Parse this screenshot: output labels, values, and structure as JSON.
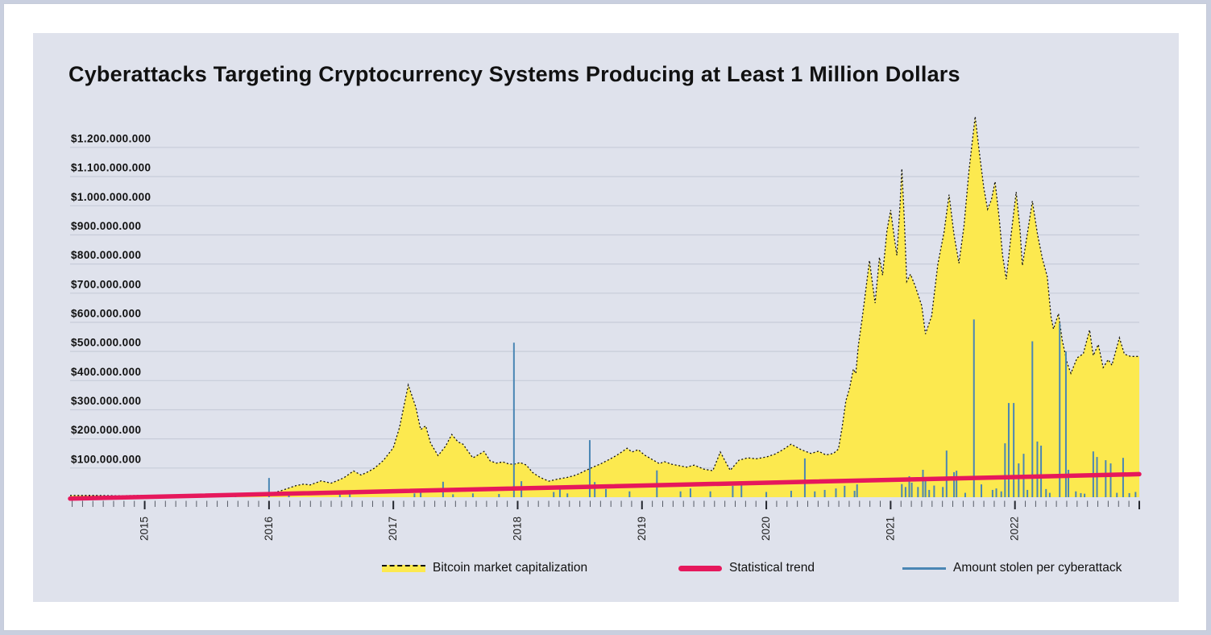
{
  "title": "Cyberattacks Targeting Cryptocurrency Systems Producing at Least 1 Million Dollars",
  "legend": {
    "market_cap_label": "Bitcoin market capitalization",
    "trend_label": "Statistical trend",
    "stolen_label": "Amount stolen per cyberattack"
  },
  "colors": {
    "page_bg": "#c9cfdf",
    "card_bg": "#ffffff",
    "panel_bg": "#dfe2ec",
    "grid": "#c7ccd9",
    "area_fill": "#FCE94F",
    "area_outline": "#111111",
    "trend": "#E6185C",
    "bars": "#4A86B4",
    "text": "#111111"
  },
  "chart_data": {
    "type": "area",
    "title": "Cyberattacks Targeting Cryptocurrency Systems Producing at Least 1 Million Dollars",
    "x_domain": [
      2014.4,
      2023.0
    ],
    "x_tick_years": [
      2015,
      2016,
      2017,
      2018,
      2019,
      2020,
      2021,
      2022
    ],
    "grid": true,
    "y_unit": "USD",
    "y_ticks": [
      {
        "value": 1200,
        "label": "$1.200.000.000"
      },
      {
        "value": 1100,
        "label": "$1.100.000.000"
      },
      {
        "value": 1000,
        "label": "$1.000.000.000"
      },
      {
        "value": 900,
        "label": "$900.000.000"
      },
      {
        "value": 800,
        "label": "$800.000.000"
      },
      {
        "value": 700,
        "label": "$700.000.000"
      },
      {
        "value": 600,
        "label": "$600.000.000"
      },
      {
        "value": 500,
        "label": "$500.000.000"
      },
      {
        "value": 400,
        "label": "$400.000.000"
      },
      {
        "value": 300,
        "label": "$300.000.000"
      },
      {
        "value": 200,
        "label": "$200.000.000"
      },
      {
        "value": 100,
        "label": "$100.000.000"
      }
    ],
    "series": [
      {
        "name": "Bitcoin market capitalization",
        "type": "area",
        "unit": "million USD",
        "points": [
          [
            2014.4,
            6
          ],
          [
            2014.6,
            6
          ],
          [
            2014.8,
            5
          ],
          [
            2015.0,
            6
          ],
          [
            2015.2,
            5
          ],
          [
            2015.45,
            5
          ],
          [
            2015.7,
            6
          ],
          [
            2015.9,
            8
          ],
          [
            2016.0,
            12
          ],
          [
            2016.08,
            20
          ],
          [
            2016.15,
            30
          ],
          [
            2016.22,
            40
          ],
          [
            2016.28,
            45
          ],
          [
            2016.33,
            42
          ],
          [
            2016.42,
            56
          ],
          [
            2016.5,
            48
          ],
          [
            2016.6,
            66
          ],
          [
            2016.68,
            90
          ],
          [
            2016.74,
            76
          ],
          [
            2016.8,
            88
          ],
          [
            2016.85,
            100
          ],
          [
            2016.92,
            126
          ],
          [
            2017.0,
            170
          ],
          [
            2017.05,
            240
          ],
          [
            2017.12,
            385
          ],
          [
            2017.18,
            310
          ],
          [
            2017.22,
            232
          ],
          [
            2017.26,
            245
          ],
          [
            2017.3,
            185
          ],
          [
            2017.36,
            143
          ],
          [
            2017.42,
            175
          ],
          [
            2017.47,
            215
          ],
          [
            2017.52,
            190
          ],
          [
            2017.56,
            182
          ],
          [
            2017.6,
            158
          ],
          [
            2017.64,
            135
          ],
          [
            2017.69,
            147
          ],
          [
            2017.73,
            157
          ],
          [
            2017.78,
            124
          ],
          [
            2017.83,
            117
          ],
          [
            2017.88,
            121
          ],
          [
            2017.93,
            114
          ],
          [
            2017.97,
            113
          ],
          [
            2018.02,
            119
          ],
          [
            2018.07,
            110
          ],
          [
            2018.12,
            85
          ],
          [
            2018.18,
            68
          ],
          [
            2018.25,
            55
          ],
          [
            2018.32,
            62
          ],
          [
            2018.4,
            68
          ],
          [
            2018.47,
            76
          ],
          [
            2018.54,
            90
          ],
          [
            2018.6,
            102
          ],
          [
            2018.67,
            115
          ],
          [
            2018.73,
            128
          ],
          [
            2018.79,
            142
          ],
          [
            2018.84,
            156
          ],
          [
            2018.88,
            168
          ],
          [
            2018.92,
            155
          ],
          [
            2018.97,
            163
          ],
          [
            2019.02,
            145
          ],
          [
            2019.08,
            130
          ],
          [
            2019.14,
            115
          ],
          [
            2019.18,
            122
          ],
          [
            2019.24,
            113
          ],
          [
            2019.3,
            108
          ],
          [
            2019.36,
            103
          ],
          [
            2019.42,
            110
          ],
          [
            2019.5,
            96
          ],
          [
            2019.57,
            91
          ],
          [
            2019.63,
            155
          ],
          [
            2019.71,
            92
          ],
          [
            2019.78,
            127
          ],
          [
            2019.85,
            135
          ],
          [
            2019.92,
            132
          ],
          [
            2020.0,
            138
          ],
          [
            2020.07,
            148
          ],
          [
            2020.13,
            162
          ],
          [
            2020.2,
            182
          ],
          [
            2020.28,
            163
          ],
          [
            2020.36,
            150
          ],
          [
            2020.42,
            158
          ],
          [
            2020.48,
            145
          ],
          [
            2020.54,
            150
          ],
          [
            2020.58,
            165
          ],
          [
            2020.61,
            240
          ],
          [
            2020.64,
            330
          ],
          [
            2020.67,
            375
          ],
          [
            2020.7,
            440
          ],
          [
            2020.72,
            425
          ],
          [
            2020.74,
            520
          ],
          [
            2020.77,
            610
          ],
          [
            2020.8,
            710
          ],
          [
            2020.83,
            812
          ],
          [
            2020.875,
            666
          ],
          [
            2020.91,
            823
          ],
          [
            2020.935,
            762
          ],
          [
            2020.97,
            914
          ],
          [
            2021.0,
            985
          ],
          [
            2021.03,
            890
          ],
          [
            2021.05,
            830
          ],
          [
            2021.075,
            1000
          ],
          [
            2021.09,
            1127
          ],
          [
            2021.11,
            950
          ],
          [
            2021.13,
            740
          ],
          [
            2021.16,
            765
          ],
          [
            2021.2,
            722
          ],
          [
            2021.25,
            657
          ],
          [
            2021.28,
            560
          ],
          [
            2021.33,
            622
          ],
          [
            2021.38,
            800
          ],
          [
            2021.43,
            910
          ],
          [
            2021.47,
            1038
          ],
          [
            2021.51,
            900
          ],
          [
            2021.55,
            803
          ],
          [
            2021.59,
            930
          ],
          [
            2021.63,
            1120
          ],
          [
            2021.68,
            1306
          ],
          [
            2021.72,
            1160
          ],
          [
            2021.75,
            1060
          ],
          [
            2021.78,
            988
          ],
          [
            2021.81,
            1020
          ],
          [
            2021.84,
            1083
          ],
          [
            2021.875,
            950
          ],
          [
            2021.9,
            830
          ],
          [
            2021.93,
            748
          ],
          [
            2021.97,
            905
          ],
          [
            2022.01,
            1047
          ],
          [
            2022.04,
            920
          ],
          [
            2022.06,
            795
          ],
          [
            2022.1,
            905
          ],
          [
            2022.14,
            1016
          ],
          [
            2022.18,
            905
          ],
          [
            2022.22,
            820
          ],
          [
            2022.26,
            757
          ],
          [
            2022.29,
            620
          ],
          [
            2022.31,
            577
          ],
          [
            2022.35,
            630
          ],
          [
            2022.38,
            540
          ],
          [
            2022.42,
            460
          ],
          [
            2022.45,
            425
          ],
          [
            2022.5,
            478
          ],
          [
            2022.55,
            492
          ],
          [
            2022.6,
            574
          ],
          [
            2022.63,
            486
          ],
          [
            2022.67,
            524
          ],
          [
            2022.71,
            445
          ],
          [
            2022.75,
            472
          ],
          [
            2022.78,
            453
          ],
          [
            2022.84,
            547
          ],
          [
            2022.88,
            491
          ],
          [
            2022.93,
            483
          ],
          [
            2023.0,
            483
          ]
        ]
      },
      {
        "name": "Statistical trend",
        "type": "line",
        "unit": "million USD",
        "points": [
          [
            2014.4,
            -5
          ],
          [
            2023.0,
            79
          ]
        ]
      },
      {
        "name": "Amount stolen per cyberattack",
        "type": "bars",
        "unit": "million USD",
        "points": [
          [
            2015.48,
            10
          ],
          [
            2015.73,
            13
          ],
          [
            2016.0,
            66
          ],
          [
            2016.16,
            9
          ],
          [
            2016.57,
            10
          ],
          [
            2016.65,
            12
          ],
          [
            2017.17,
            13
          ],
          [
            2017.22,
            16
          ],
          [
            2017.4,
            53
          ],
          [
            2017.48,
            10
          ],
          [
            2017.64,
            13
          ],
          [
            2017.85,
            11
          ],
          [
            2017.97,
            530
          ],
          [
            2018.03,
            55
          ],
          [
            2018.29,
            18
          ],
          [
            2018.34,
            40
          ],
          [
            2018.4,
            13
          ],
          [
            2018.58,
            196
          ],
          [
            2018.62,
            52
          ],
          [
            2018.71,
            28
          ],
          [
            2018.9,
            20
          ],
          [
            2019.12,
            92
          ],
          [
            2019.31,
            20
          ],
          [
            2019.39,
            30
          ],
          [
            2019.55,
            20
          ],
          [
            2019.73,
            39
          ],
          [
            2019.8,
            44
          ],
          [
            2020.0,
            18
          ],
          [
            2020.2,
            22
          ],
          [
            2020.31,
            133
          ],
          [
            2020.39,
            20
          ],
          [
            2020.47,
            25
          ],
          [
            2020.56,
            30
          ],
          [
            2020.63,
            39
          ],
          [
            2020.71,
            22
          ],
          [
            2020.73,
            44
          ],
          [
            2021.09,
            45
          ],
          [
            2021.12,
            35
          ],
          [
            2021.15,
            72
          ],
          [
            2021.17,
            50
          ],
          [
            2021.22,
            35
          ],
          [
            2021.26,
            94
          ],
          [
            2021.28,
            60
          ],
          [
            2021.31,
            25
          ],
          [
            2021.35,
            40
          ],
          [
            2021.42,
            35
          ],
          [
            2021.45,
            160
          ],
          [
            2021.51,
            86
          ],
          [
            2021.53,
            91
          ],
          [
            2021.6,
            15
          ],
          [
            2021.67,
            610
          ],
          [
            2021.73,
            44
          ],
          [
            2021.82,
            25
          ],
          [
            2021.85,
            30
          ],
          [
            2021.89,
            20
          ],
          [
            2021.92,
            185
          ],
          [
            2021.95,
            323
          ],
          [
            2021.99,
            323
          ],
          [
            2022.03,
            116
          ],
          [
            2022.07,
            149
          ],
          [
            2022.1,
            25
          ],
          [
            2022.14,
            535
          ],
          [
            2022.18,
            191
          ],
          [
            2022.21,
            177
          ],
          [
            2022.25,
            28
          ],
          [
            2022.28,
            15
          ],
          [
            2022.36,
            597
          ],
          [
            2022.41,
            500
          ],
          [
            2022.43,
            94
          ],
          [
            2022.49,
            20
          ],
          [
            2022.53,
            14
          ],
          [
            2022.56,
            12
          ],
          [
            2022.63,
            157
          ],
          [
            2022.66,
            138
          ],
          [
            2022.73,
            127
          ],
          [
            2022.77,
            116
          ],
          [
            2022.82,
            15
          ],
          [
            2022.87,
            135
          ],
          [
            2022.92,
            14
          ],
          [
            2022.97,
            18
          ]
        ]
      }
    ]
  }
}
